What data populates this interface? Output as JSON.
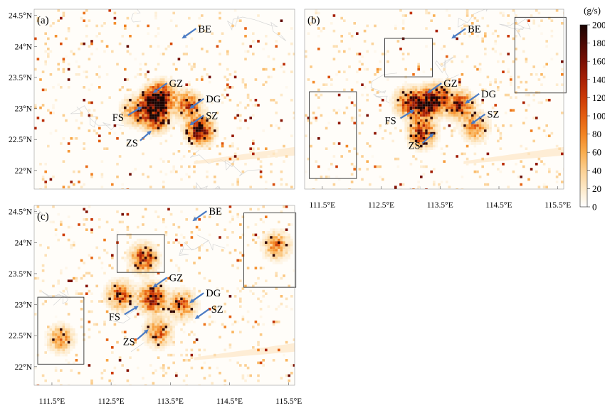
{
  "chart_data": {
    "type": "heatmap",
    "colorbar": {
      "unit": "(g/s)",
      "ticks": [
        200,
        180,
        160,
        140,
        120,
        100,
        80,
        60,
        40,
        20,
        0
      ],
      "range": [
        0,
        200
      ],
      "colors": [
        "#ffffff",
        "#fde9c8",
        "#fbd093",
        "#f9ad4e",
        "#f28322",
        "#e35d10",
        "#cc3a06",
        "#a82005",
        "#7a1004",
        "#4a0803",
        "#1a0402"
      ]
    },
    "x_ticks": [
      "111.5°E",
      "112.5°E",
      "113.5°E",
      "114.5°E",
      "115.5°E"
    ],
    "y_ticks": [
      "24.5°N",
      "24°N",
      "23.5°N",
      "23°N",
      "22.5°N",
      "22°N"
    ],
    "xlim": [
      111.2,
      115.6
    ],
    "ylim": [
      21.7,
      24.6
    ],
    "panels": [
      {
        "label": "(a)",
        "show_x_ticks": false,
        "show_y_ticks": true,
        "labels": [
          {
            "text": "BE",
            "lon": 113.97,
            "lat": 24.23
          },
          {
            "text": "GZ",
            "lon": 113.48,
            "lat": 23.35
          },
          {
            "text": "DG",
            "lon": 114.1,
            "lat": 23.1
          },
          {
            "text": "SZ",
            "lon": 114.1,
            "lat": 22.83
          },
          {
            "text": "FS",
            "lon": 112.52,
            "lat": 22.8
          },
          {
            "text": "ZS",
            "lon": 112.75,
            "lat": 22.39
          }
        ],
        "boxes": [],
        "hotspots": [
          {
            "lon": 113.22,
            "lat": 23.08,
            "intensity": 200
          },
          {
            "lon": 113.35,
            "lat": 23.2,
            "intensity": 170
          },
          {
            "lon": 113.25,
            "lat": 22.85,
            "intensity": 150
          },
          {
            "lon": 114.0,
            "lat": 22.65,
            "intensity": 200
          },
          {
            "lon": 113.8,
            "lat": 23.05,
            "intensity": 120
          },
          {
            "lon": 112.9,
            "lat": 22.95,
            "intensity": 90
          }
        ]
      },
      {
        "label": "(b)",
        "show_x_ticks": true,
        "show_y_ticks": false,
        "labels": [
          {
            "text": "BE",
            "lon": 113.97,
            "lat": 24.23
          },
          {
            "text": "GZ",
            "lon": 113.56,
            "lat": 23.35
          },
          {
            "text": "DG",
            "lon": 114.2,
            "lat": 23.18
          },
          {
            "text": "SZ",
            "lon": 114.3,
            "lat": 22.85
          },
          {
            "text": "FS",
            "lon": 112.56,
            "lat": 22.75
          },
          {
            "text": "ZS",
            "lon": 112.96,
            "lat": 22.35
          }
        ],
        "boxes": [
          {
            "lon0": 111.28,
            "lon1": 112.08,
            "lat0": 21.87,
            "lat1": 23.27
          },
          {
            "lon0": 112.56,
            "lon1": 113.37,
            "lat0": 23.51,
            "lat1": 24.13
          },
          {
            "lon0": 114.77,
            "lon1": 115.64,
            "lat0": 23.25,
            "lat1": 24.47
          }
        ],
        "hotspots": [
          {
            "lon": 113.2,
            "lat": 23.05,
            "intensity": 200
          },
          {
            "lon": 113.45,
            "lat": 23.15,
            "intensity": 180
          },
          {
            "lon": 113.2,
            "lat": 22.6,
            "intensity": 150
          },
          {
            "lon": 113.85,
            "lat": 23.05,
            "intensity": 140
          },
          {
            "lon": 114.1,
            "lat": 22.7,
            "intensity": 90
          },
          {
            "lon": 112.95,
            "lat": 23.1,
            "intensity": 110
          }
        ]
      },
      {
        "label": "(c)",
        "show_x_ticks": true,
        "show_y_ticks": true,
        "labels": [
          {
            "text": "BE",
            "lon": 114.15,
            "lat": 24.45
          },
          {
            "text": "GZ",
            "lon": 113.48,
            "lat": 23.38
          },
          {
            "text": "DG",
            "lon": 114.1,
            "lat": 23.13
          },
          {
            "text": "SZ",
            "lon": 114.19,
            "lat": 22.87
          },
          {
            "text": "FS",
            "lon": 112.46,
            "lat": 22.75
          },
          {
            "text": "ZS",
            "lon": 112.7,
            "lat": 22.35
          }
        ],
        "boxes": [
          {
            "lon0": 111.26,
            "lon1": 112.04,
            "lat0": 22.04,
            "lat1": 23.12
          },
          {
            "lon0": 112.6,
            "lon1": 113.4,
            "lat0": 23.52,
            "lat1": 24.13
          },
          {
            "lon0": 114.74,
            "lon1": 115.62,
            "lat0": 23.28,
            "lat1": 24.48
          }
        ],
        "hotspots": [
          {
            "lon": 113.2,
            "lat": 23.1,
            "intensity": 170
          },
          {
            "lon": 113.05,
            "lat": 23.75,
            "intensity": 140
          },
          {
            "lon": 112.65,
            "lat": 23.15,
            "intensity": 120
          },
          {
            "lon": 113.7,
            "lat": 23.0,
            "intensity": 110
          },
          {
            "lon": 115.3,
            "lat": 23.95,
            "intensity": 90
          },
          {
            "lon": 111.65,
            "lat": 22.45,
            "intensity": 80
          },
          {
            "lon": 113.3,
            "lat": 22.55,
            "intensity": 100
          }
        ]
      }
    ]
  }
}
